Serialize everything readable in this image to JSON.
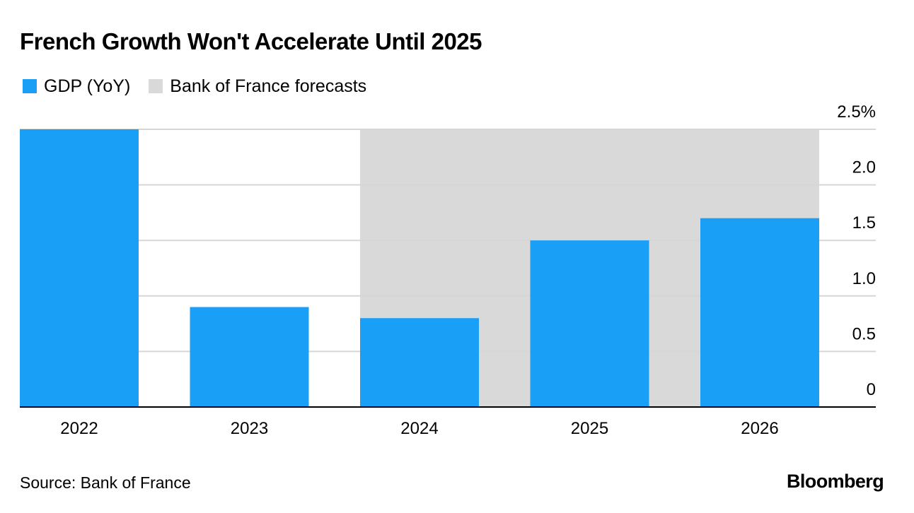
{
  "chart_data": {
    "type": "bar",
    "title": "French Growth Won't Accelerate Until 2025",
    "categories": [
      "2022",
      "2023",
      "2024",
      "2025",
      "2026"
    ],
    "series": [
      {
        "name": "GDP (YoY)",
        "values": [
          2.5,
          0.9,
          0.8,
          1.5,
          1.7
        ]
      }
    ],
    "shaded_region": {
      "label": "Bank of France forecasts",
      "categories": [
        "2024",
        "2025",
        "2026"
      ]
    },
    "y_axis": {
      "min": 0,
      "max": 2.5,
      "ticks": [
        0,
        0.5,
        1.0,
        1.5,
        2.0,
        2.5
      ],
      "tick_labels": [
        "0",
        "0.5",
        "1.0",
        "1.5",
        "2.0",
        "2.5%"
      ],
      "position": "right",
      "grid": true
    },
    "xlabel": "",
    "ylabel": "",
    "legend": [
      {
        "label": "GDP (YoY)",
        "color": "#1a9ff7"
      },
      {
        "label": "Bank of France forecasts",
        "color": "#d9d9d9"
      }
    ],
    "legend_position": "top-left",
    "source": "Source: Bank of France",
    "brand": "Bloomberg"
  },
  "colors": {
    "bar": "#1a9ff7",
    "forecast_band": "#d9d9d9",
    "grid": "#d6d6d6",
    "axis": "#000000"
  }
}
